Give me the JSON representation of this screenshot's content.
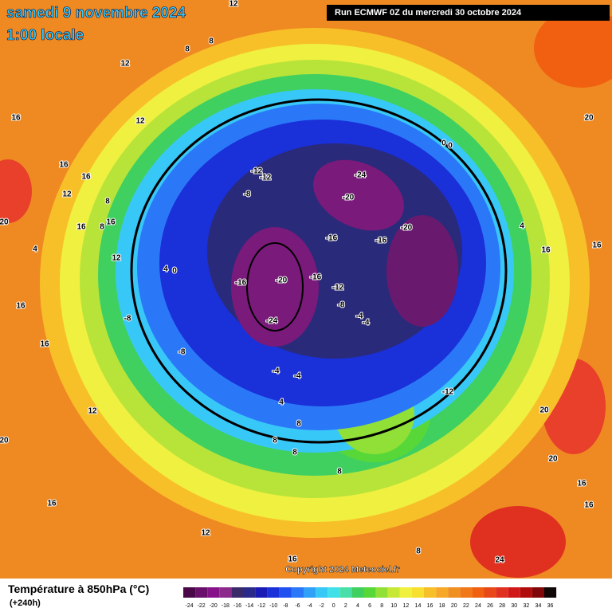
{
  "header": {
    "date": "samedi 9 novembre 2024",
    "time": "1:00 locale",
    "run": "Run ECMWF 0Z du mercredi 30 octobre 2024"
  },
  "copyright": "Copyright 2024 Meteociel.fr",
  "footer": {
    "title": "Température à 850hPa (°C)",
    "lead": "(+240h)"
  },
  "colorbar": {
    "ticks": [
      -24,
      -22,
      -20,
      -18,
      -16,
      -14,
      -12,
      -10,
      -8,
      -6,
      -4,
      -2,
      0,
      2,
      4,
      6,
      8,
      10,
      12,
      14,
      16,
      18,
      20,
      22,
      24,
      26,
      28,
      30,
      32,
      34,
      36
    ],
    "colors": [
      "#4a0848",
      "#6a0f6a",
      "#86128a",
      "#8c2a8c",
      "#3a2a6a",
      "#2a2a8a",
      "#1a1ab4",
      "#1a30d8",
      "#2050f0",
      "#2a78f8",
      "#30a0f8",
      "#38c8f8",
      "#40e0e8",
      "#48e0a8",
      "#40d060",
      "#58d838",
      "#90e038",
      "#c8e838",
      "#f0f040",
      "#f8e030",
      "#f8c028",
      "#f8a828",
      "#f09020",
      "#f07818",
      "#f06010",
      "#e84818",
      "#e03020",
      "#d01818",
      "#b00c0c",
      "#800808",
      "#100808"
    ]
  },
  "contour_labels": [
    12,
    8,
    8,
    12,
    16,
    12,
    16,
    12,
    16,
    8,
    16,
    16,
    8,
    4,
    12,
    4,
    0,
    16,
    16,
    12,
    20,
    16,
    12,
    16,
    8,
    24,
    16,
    16,
    20,
    20,
    16,
    16,
    4,
    20,
    0,
    0,
    -12,
    -12,
    -8,
    -24,
    -20,
    -16,
    -16,
    -20,
    -16,
    -20,
    -16,
    -12,
    -8,
    -4,
    -4,
    -24,
    -8,
    -8,
    -4,
    -4,
    4,
    8,
    8,
    8,
    8,
    -12,
    20
  ]
}
